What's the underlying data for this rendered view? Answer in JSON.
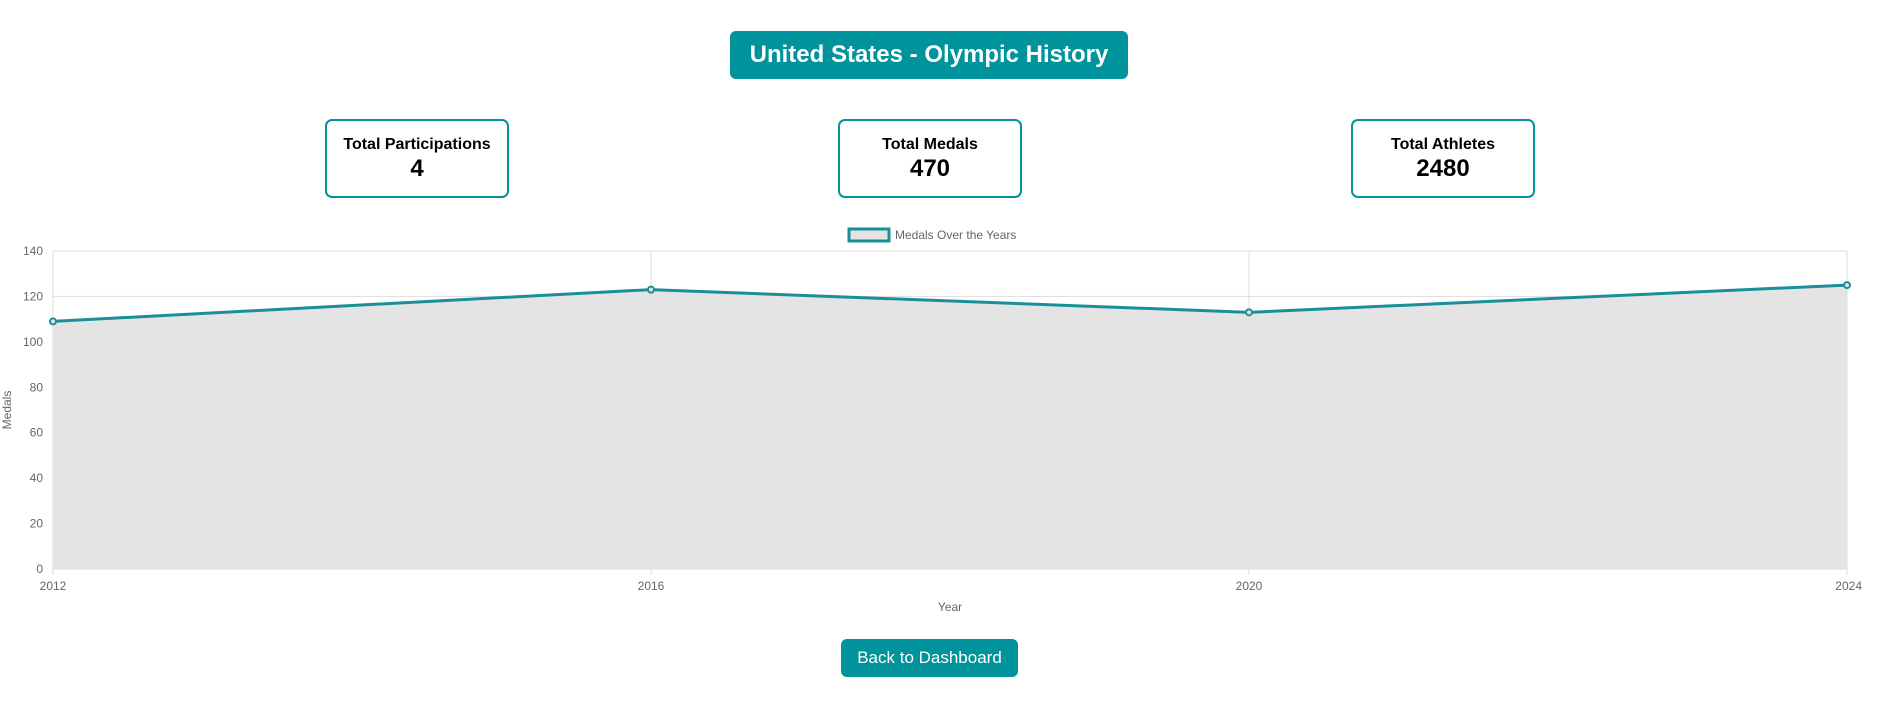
{
  "header": {
    "title": "United States - Olympic History"
  },
  "stats": [
    {
      "label": "Total Participations",
      "value": "4"
    },
    {
      "label": "Total Medals",
      "value": "470"
    },
    {
      "label": "Total Athletes",
      "value": "2480"
    }
  ],
  "chart_data": {
    "type": "area",
    "x": [
      "2012",
      "2016",
      "2020",
      "2024"
    ],
    "series": [
      {
        "name": "Medals Over the Years",
        "values": [
          109,
          123,
          113,
          125
        ]
      }
    ],
    "xlabel": "Year",
    "ylabel": "Medals",
    "ylim": [
      0,
      140
    ],
    "yticks": [
      0,
      20,
      40,
      60,
      80,
      100,
      120,
      140
    ],
    "grid": true,
    "legend": "top-center"
  },
  "footer": {
    "back_label": "Back to Dashboard"
  },
  "colors": {
    "accent": "#00939c",
    "line": "#1a8f9a",
    "area_fill": "#e4e4e4",
    "grid": "#dddddd",
    "tick_text": "#666666"
  }
}
